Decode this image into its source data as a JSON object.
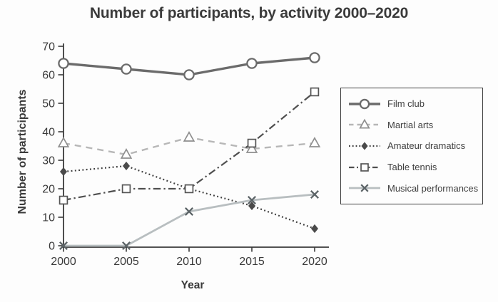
{
  "page": {
    "background": "#fdfdfd"
  },
  "chart_data": {
    "type": "line",
    "title": "Number of participants, by activity 2000–2020",
    "xlabel": "Year",
    "ylabel": "Number of participants",
    "x": [
      2000,
      2005,
      2010,
      2015,
      2020
    ],
    "x_tick_labels": [
      "2000",
      "2005",
      "2010",
      "2015",
      "2020"
    ],
    "y_ticks": [
      0,
      10,
      20,
      30,
      40,
      50,
      60,
      70
    ],
    "ylim": [
      0,
      70
    ],
    "grid": false,
    "legend_position": "right",
    "axis_color": "#3a3a3a",
    "tick_label_color": "#3a3a3a",
    "series": [
      {
        "name": "Film club",
        "values": [
          64,
          62,
          60,
          64,
          66
        ],
        "marker": "circle",
        "line_style": "solid",
        "color": "#6b6b6b",
        "marker_color": "#6b6b6b",
        "line_width": 3.4
      },
      {
        "name": "Martial arts",
        "values": [
          36,
          32,
          38,
          34,
          36
        ],
        "marker": "triangle",
        "line_style": "dashed",
        "color": "#b7b7b7",
        "marker_color": "#8f8f8f",
        "line_width": 2.4
      },
      {
        "name": "Amateur dramatics",
        "values": [
          26,
          28,
          20,
          14,
          6
        ],
        "marker": "diamond",
        "line_style": "dotted",
        "color": "#3f3f3f",
        "marker_color": "#4a4a4a",
        "line_width": 2.2
      },
      {
        "name": "Table tennis",
        "values": [
          16,
          20,
          20,
          36,
          54
        ],
        "marker": "square",
        "line_style": "dashdot",
        "color": "#4f4f4f",
        "marker_color": "#555555",
        "line_width": 2.2
      },
      {
        "name": "Musical performances",
        "values": [
          0,
          0,
          12,
          16,
          18
        ],
        "marker": "x",
        "line_style": "solid",
        "color": "#b8bec0",
        "marker_color": "#5c6467",
        "line_width": 2.8
      }
    ]
  }
}
